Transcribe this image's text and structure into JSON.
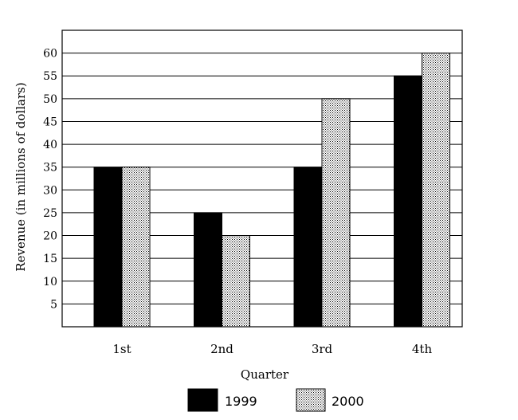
{
  "chart_data": {
    "type": "bar",
    "title": "",
    "xlabel": "Quarter",
    "ylabel": "Revenue (in millions of dollars)",
    "categories": [
      "1st",
      "2nd",
      "3rd",
      "4th"
    ],
    "series": [
      {
        "name": "1999",
        "values": [
          35,
          25,
          35,
          55
        ],
        "fill": "solid-black"
      },
      {
        "name": "2000",
        "values": [
          35,
          20,
          50,
          60
        ],
        "fill": "dotted-gray"
      }
    ],
    "ylim": [
      0,
      65
    ],
    "yticks": [
      5,
      10,
      15,
      20,
      25,
      30,
      35,
      40,
      45,
      50,
      55,
      60
    ],
    "grid": true,
    "legend_position": "bottom-center",
    "colors": {
      "series_1999": "#000000",
      "series_2000_dot": "#000000",
      "series_2000_bg": "#ffffff"
    }
  }
}
